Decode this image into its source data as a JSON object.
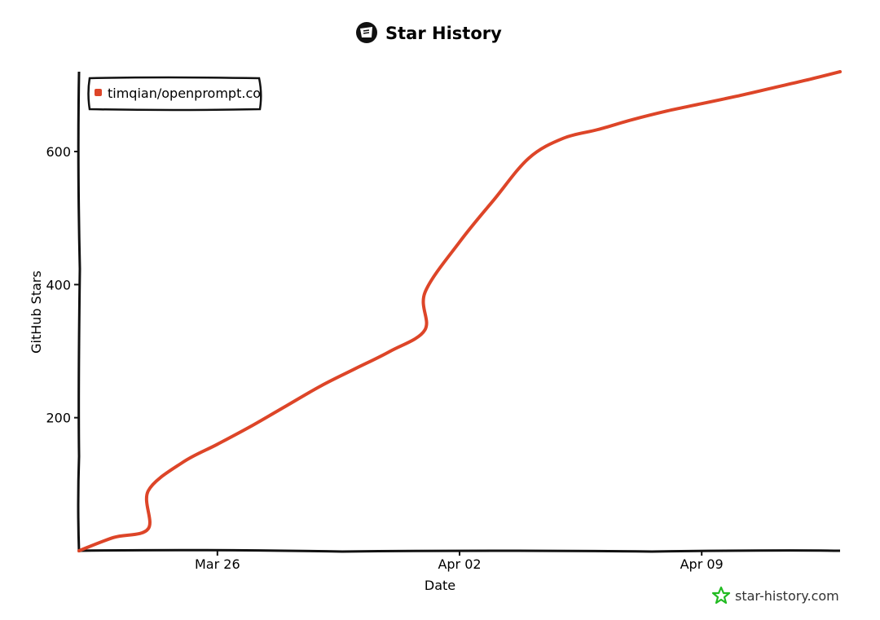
{
  "chart_data": {
    "type": "line",
    "title": "Star History",
    "xlabel": "Date",
    "ylabel": "GitHub Stars",
    "xlim": [
      "2023-03-22",
      "2023-04-13"
    ],
    "ylim": [
      0,
      720
    ],
    "x_ticks": [
      {
        "date": "2023-03-26",
        "label": "Mar 26"
      },
      {
        "date": "2023-04-02",
        "label": "Apr 02"
      },
      {
        "date": "2023-04-09",
        "label": "Apr 09"
      }
    ],
    "y_ticks": [
      200,
      400,
      600
    ],
    "legend_position": "top-left",
    "series": [
      {
        "name": "timqian/openprompt.co",
        "color": "#dd4528",
        "x": [
          "2023-03-22",
          "2023-03-23",
          "2023-03-24",
          "2023-03-24",
          "2023-03-25",
          "2023-03-26",
          "2023-03-27",
          "2023-03-28",
          "2023-03-29",
          "2023-03-30",
          "2023-03-31",
          "2023-04-01",
          "2023-04-01",
          "2023-04-02",
          "2023-04-03",
          "2023-04-04",
          "2023-04-05",
          "2023-04-06",
          "2023-04-07",
          "2023-04-08",
          "2023-04-09",
          "2023-04-10",
          "2023-04-11",
          "2023-04-12",
          "2023-04-13"
        ],
        "y": [
          0,
          20,
          33,
          90,
          133,
          160,
          188,
          218,
          248,
          274,
          300,
          332,
          388,
          464,
          528,
          590,
          620,
          633,
          648,
          661,
          672,
          683,
          695,
          707,
          720
        ]
      }
    ]
  },
  "watermark": {
    "text": "star-history.com",
    "icon": "star-icon",
    "color": "#22bb22"
  },
  "logo": {
    "icon": "star-history-logo-icon"
  }
}
